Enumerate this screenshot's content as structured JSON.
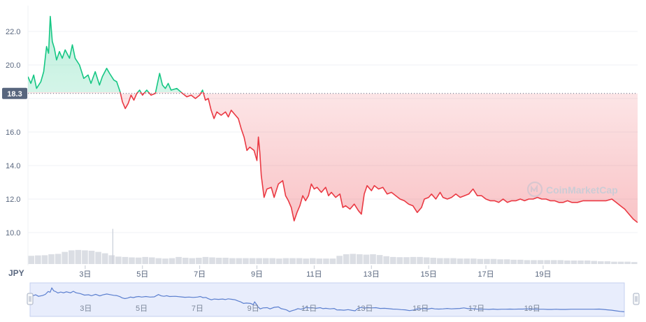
{
  "currency_label": "JPY",
  "watermark": "CoinMarketCap",
  "colors": {
    "up": "#16c784",
    "down": "#ea3943",
    "reference_tag": "#58667e",
    "grid": "#eff2f5",
    "axis_text": "#58667e",
    "volume": "#dbdee4",
    "navigator_fill": "#e8edfc",
    "navigator_line": "#5b7fcf"
  },
  "chart_data": {
    "type": "line",
    "title": "",
    "xlabel": "",
    "ylabel": "",
    "currency": "JPY",
    "reference_price": 18.3,
    "reference_label": "18.3",
    "ylim": [
      10.0,
      23.0
    ],
    "y_ticks": [
      10.0,
      12.0,
      14.0,
      16.0,
      18.0,
      20.0,
      22.0
    ],
    "y_tick_labels": [
      "10.0",
      "12.0",
      "14.0",
      "16.0",
      "",
      "20.0",
      "22.0"
    ],
    "x_tick_labels": [
      "3日",
      "5日",
      "7日",
      "9日",
      "11日",
      "13日",
      "15日",
      "17日",
      "19日"
    ],
    "x_tick_days": [
      3,
      5,
      7,
      9,
      11,
      13,
      15,
      17,
      19
    ],
    "x_range_days": [
      1,
      22.3
    ],
    "grid": true,
    "series": [
      {
        "values": [
          [
            1.0,
            19.3
          ],
          [
            1.1,
            18.9
          ],
          [
            1.2,
            19.4
          ],
          [
            1.3,
            18.6
          ],
          [
            1.45,
            19.0
          ],
          [
            1.55,
            19.6
          ],
          [
            1.65,
            21.1
          ],
          [
            1.72,
            20.7
          ],
          [
            1.78,
            22.9
          ],
          [
            1.85,
            21.4
          ],
          [
            1.92,
            21.0
          ],
          [
            2.0,
            20.3
          ],
          [
            2.1,
            20.8
          ],
          [
            2.2,
            20.4
          ],
          [
            2.3,
            20.9
          ],
          [
            2.45,
            20.4
          ],
          [
            2.55,
            21.2
          ],
          [
            2.65,
            20.4
          ],
          [
            2.8,
            20.0
          ],
          [
            2.95,
            19.2
          ],
          [
            3.1,
            19.4
          ],
          [
            3.2,
            18.9
          ],
          [
            3.35,
            19.6
          ],
          [
            3.5,
            18.8
          ],
          [
            3.6,
            19.3
          ],
          [
            3.75,
            19.8
          ],
          [
            3.85,
            19.5
          ],
          [
            4.0,
            19.1
          ],
          [
            4.1,
            19.0
          ],
          [
            4.22,
            18.4
          ],
          [
            4.3,
            17.8
          ],
          [
            4.4,
            17.4
          ],
          [
            4.5,
            17.7
          ],
          [
            4.6,
            18.2
          ],
          [
            4.7,
            17.9
          ],
          [
            4.8,
            18.3
          ],
          [
            4.9,
            18.5
          ],
          [
            5.0,
            18.2
          ],
          [
            5.15,
            18.5
          ],
          [
            5.3,
            18.2
          ],
          [
            5.45,
            18.3
          ],
          [
            5.6,
            19.5
          ],
          [
            5.7,
            18.8
          ],
          [
            5.8,
            18.6
          ],
          [
            5.9,
            18.9
          ],
          [
            6.0,
            18.5
          ],
          [
            6.2,
            18.6
          ],
          [
            6.4,
            18.3
          ],
          [
            6.55,
            18.1
          ],
          [
            6.7,
            18.2
          ],
          [
            6.85,
            18.0
          ],
          [
            7.0,
            18.2
          ],
          [
            7.1,
            18.5
          ],
          [
            7.2,
            17.9
          ],
          [
            7.3,
            18.0
          ],
          [
            7.4,
            17.3
          ],
          [
            7.5,
            16.8
          ],
          [
            7.6,
            17.2
          ],
          [
            7.75,
            17.0
          ],
          [
            7.9,
            17.2
          ],
          [
            8.0,
            16.9
          ],
          [
            8.1,
            17.3
          ],
          [
            8.25,
            17.0
          ],
          [
            8.35,
            16.8
          ],
          [
            8.45,
            16.2
          ],
          [
            8.55,
            15.7
          ],
          [
            8.65,
            14.9
          ],
          [
            8.75,
            15.1
          ],
          [
            8.9,
            14.9
          ],
          [
            9.0,
            14.3
          ],
          [
            9.05,
            15.7
          ],
          [
            9.1,
            14.8
          ],
          [
            9.15,
            13.4
          ],
          [
            9.25,
            12.1
          ],
          [
            9.35,
            12.6
          ],
          [
            9.5,
            12.7
          ],
          [
            9.6,
            12.1
          ],
          [
            9.75,
            12.9
          ],
          [
            9.9,
            13.1
          ],
          [
            10.0,
            12.2
          ],
          [
            10.1,
            11.9
          ],
          [
            10.2,
            11.5
          ],
          [
            10.3,
            10.7
          ],
          [
            10.4,
            11.2
          ],
          [
            10.5,
            11.6
          ],
          [
            10.6,
            12.2
          ],
          [
            10.7,
            11.9
          ],
          [
            10.8,
            12.2
          ],
          [
            10.9,
            12.9
          ],
          [
            11.0,
            12.6
          ],
          [
            11.1,
            12.7
          ],
          [
            11.25,
            12.4
          ],
          [
            11.4,
            12.7
          ],
          [
            11.5,
            12.2
          ],
          [
            11.6,
            12.4
          ],
          [
            11.75,
            12.1
          ],
          [
            11.9,
            12.3
          ],
          [
            12.0,
            11.5
          ],
          [
            12.1,
            11.6
          ],
          [
            12.25,
            11.4
          ],
          [
            12.4,
            11.7
          ],
          [
            12.55,
            11.3
          ],
          [
            12.65,
            11.1
          ],
          [
            12.75,
            12.3
          ],
          [
            12.85,
            12.8
          ],
          [
            13.0,
            12.5
          ],
          [
            13.1,
            12.8
          ],
          [
            13.25,
            12.6
          ],
          [
            13.4,
            12.7
          ],
          [
            13.55,
            12.3
          ],
          [
            13.7,
            12.4
          ],
          [
            13.85,
            12.2
          ],
          [
            14.0,
            12.0
          ],
          [
            14.15,
            11.9
          ],
          [
            14.3,
            11.7
          ],
          [
            14.45,
            11.6
          ],
          [
            14.6,
            11.2
          ],
          [
            14.75,
            11.5
          ],
          [
            14.85,
            12.0
          ],
          [
            15.0,
            12.1
          ],
          [
            15.1,
            12.3
          ],
          [
            15.25,
            12.0
          ],
          [
            15.4,
            12.4
          ],
          [
            15.5,
            12.1
          ],
          [
            15.65,
            12.0
          ],
          [
            15.8,
            12.1
          ],
          [
            15.95,
            12.3
          ],
          [
            16.1,
            12.1
          ],
          [
            16.25,
            12.2
          ],
          [
            16.4,
            12.3
          ],
          [
            16.55,
            12.6
          ],
          [
            16.7,
            12.2
          ],
          [
            16.85,
            12.2
          ],
          [
            17.0,
            12.0
          ],
          [
            17.15,
            11.9
          ],
          [
            17.3,
            11.9
          ],
          [
            17.45,
            11.8
          ],
          [
            17.6,
            12.0
          ],
          [
            17.75,
            11.8
          ],
          [
            17.9,
            11.9
          ],
          [
            18.05,
            11.9
          ],
          [
            18.2,
            12.0
          ],
          [
            18.35,
            11.9
          ],
          [
            18.5,
            12.0
          ],
          [
            18.65,
            12.0
          ],
          [
            18.8,
            12.1
          ],
          [
            18.95,
            12.0
          ],
          [
            19.1,
            12.0
          ],
          [
            19.25,
            11.9
          ],
          [
            19.4,
            11.9
          ],
          [
            19.55,
            11.8
          ],
          [
            19.7,
            11.8
          ],
          [
            19.85,
            11.9
          ],
          [
            20.0,
            11.8
          ],
          [
            20.2,
            11.8
          ],
          [
            20.4,
            11.9
          ],
          [
            20.6,
            11.9
          ],
          [
            20.8,
            11.9
          ],
          [
            21.0,
            11.9
          ],
          [
            21.2,
            11.9
          ],
          [
            21.4,
            12.0
          ],
          [
            21.55,
            11.8
          ],
          [
            21.7,
            11.6
          ],
          [
            21.85,
            11.4
          ],
          [
            22.0,
            11.1
          ],
          [
            22.15,
            10.8
          ],
          [
            22.3,
            10.6
          ]
        ]
      }
    ],
    "volume_relative": [
      0.42,
      0.44,
      0.45,
      0.5,
      0.52,
      0.62,
      0.7,
      0.72,
      0.7,
      0.68,
      0.62,
      0.55,
      0.45,
      0.38,
      0.36,
      0.34,
      0.33,
      0.36,
      0.34,
      0.3,
      0.28,
      0.3,
      0.36,
      0.32,
      0.3,
      0.32,
      0.36,
      0.34,
      0.32,
      0.32,
      0.3,
      0.3,
      0.3,
      0.3,
      0.3,
      0.3,
      0.3,
      0.28,
      0.3,
      0.3,
      0.3,
      0.28,
      0.3,
      0.28,
      0.28,
      0.28,
      0.42,
      0.5,
      0.52,
      0.5,
      0.48,
      0.5,
      0.46,
      0.4,
      0.36,
      0.35,
      0.35,
      0.36,
      0.36,
      0.34,
      0.32,
      0.3,
      0.3,
      0.3,
      0.28,
      0.28,
      0.28,
      0.26,
      0.26,
      0.26,
      0.24,
      0.24,
      0.22,
      0.22,
      0.2,
      0.2,
      0.2,
      0.2,
      0.2,
      0.2,
      0.18,
      0.18,
      0.18,
      0.18,
      0.16,
      0.14,
      0.14,
      0.12,
      0.12,
      0.12,
      0.1
    ],
    "volume_spike_day": 3.95,
    "volume_spike_relative": 1.8
  }
}
